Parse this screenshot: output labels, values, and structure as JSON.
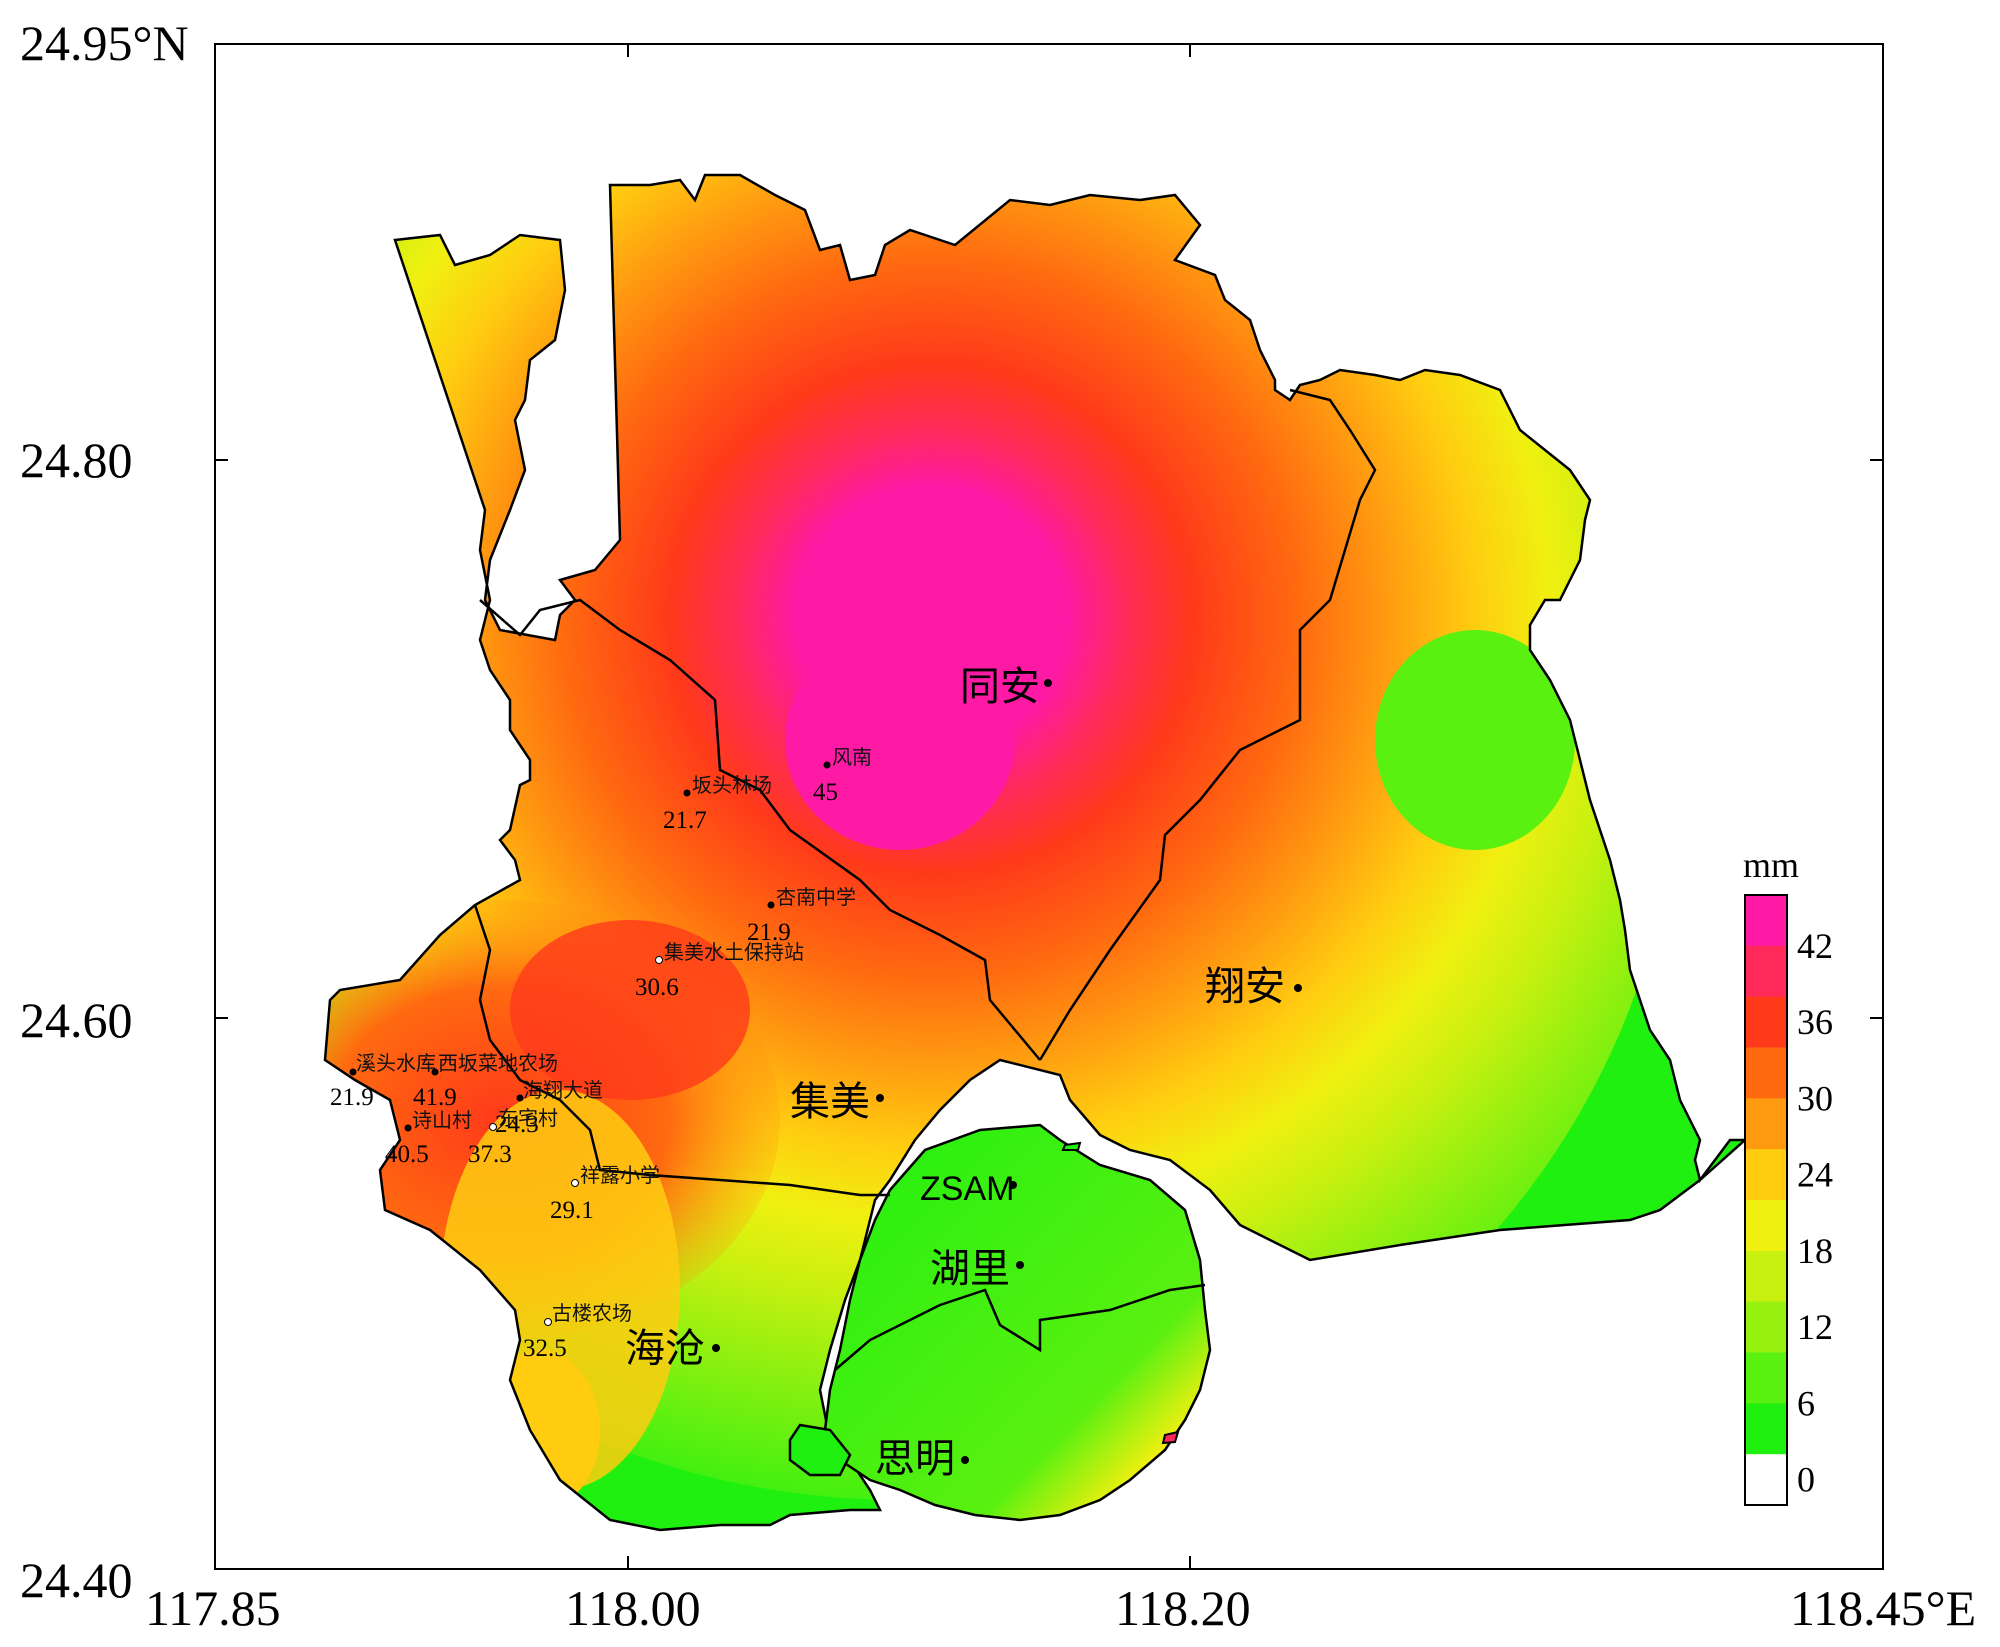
{
  "axes": {
    "lat_top": "24.95°N",
    "lat_mid": "24.80",
    "lat_low": "24.60",
    "lat_bottom": "24.40",
    "lon_left": "117.85",
    "lon_1": "118.00",
    "lon_2": "118.20",
    "lon_right": "118.45°E"
  },
  "districts": {
    "tongan": "同安",
    "xiangan": "翔安",
    "jimei": "集美",
    "zsam": "ZSAM",
    "huli": "湖里",
    "haicang": "海沧",
    "siming": "思明"
  },
  "stations": [
    {
      "name": "风南",
      "value": "45"
    },
    {
      "name": "坂头林场",
      "value": "21.7"
    },
    {
      "name": "杏南中学",
      "value": "21.9"
    },
    {
      "name": "集美水土保持站",
      "value": "30.6"
    },
    {
      "name": "溪头水库",
      "value": "21.9"
    },
    {
      "name": "西坂菜地农场",
      "value": "41.9"
    },
    {
      "name": "海翔大道",
      "value": "24.3"
    },
    {
      "name": "东宅村",
      "value": "37.3"
    },
    {
      "name": "诗山村",
      "value": "40.5"
    },
    {
      "name": "祥露小学",
      "value": "29.1"
    },
    {
      "name": "古楼农场",
      "value": "32.5"
    }
  ],
  "colorbar": {
    "unit": "mm",
    "ticks": [
      "42",
      "36",
      "30",
      "24",
      "18",
      "12",
      "6",
      "0"
    ],
    "colors": [
      "#ff1aa6",
      "#ff2a5a",
      "#ff3a1a",
      "#ff6a10",
      "#ff9a10",
      "#ffcc10",
      "#f0f010",
      "#c8f010",
      "#96f010",
      "#5af010",
      "#20f010",
      "#ffffff"
    ]
  }
}
